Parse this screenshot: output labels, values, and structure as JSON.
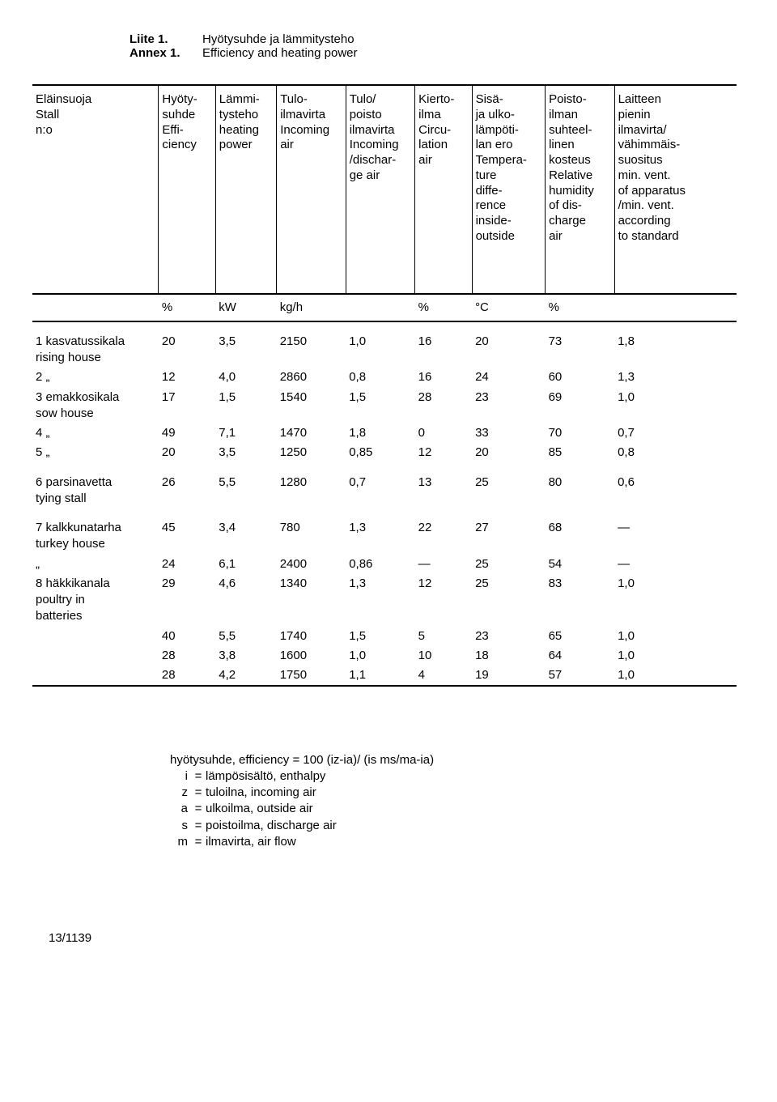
{
  "header": {
    "label_fi": "Liite 1.",
    "label_en": "Annex 1.",
    "title_fi": "Hyötysuhde ja lämmitysteho",
    "title_en": "Efficiency and heating power"
  },
  "columns": [
    "Eläinsuoja\nStall\nn:o",
    "Hyöty-\nsuhde\nEffi-\nciency",
    "Lämmi-\ntysteho\nheating\npower",
    "Tulo-\nilmavirta\nIncoming\nair",
    "Tulo/\npoisto\nilmavirta\nIncoming\n/dischar-\nge air",
    "Kierto-\nilma\nCircu-\nlation\nair",
    "Sisä-\nja ulko-\nlämpöti-\nlan ero\nTempera-\nture\ndiffe-\nrence\ninside-\noutside",
    "Poisto-\nilman\nsuhteel-\nlinen\nkosteus\nRelative\nhumidity\nof dis-\ncharge\nair",
    "Laitteen\npienin\nilmavirta/\nvähimmäis-\nsuositus\nmin. vent.\nof apparatus\n/min. vent.\naccording\nto standard"
  ],
  "units": [
    "",
    "%",
    "kW",
    "kg/h",
    "",
    "%",
    "°C",
    "%",
    ""
  ],
  "groups": [
    {
      "rows": [
        {
          "stall": "1  kasvatussikala\n    rising house",
          "cells": [
            "20",
            "3,5",
            "2150",
            "1,0",
            "16",
            "20",
            "73",
            "1,8"
          ]
        },
        {
          "stall": "2       „",
          "cells": [
            "12",
            "4,0",
            "2860",
            "0,8",
            "16",
            "24",
            "60",
            "1,3"
          ]
        },
        {
          "stall": "3  emakkosikala\n    sow house",
          "cells": [
            "17",
            "1,5",
            "1540",
            "1,5",
            "28",
            "23",
            "69",
            "1,0"
          ]
        },
        {
          "stall": "4       „",
          "cells": [
            "49",
            "7,1",
            "1470",
            "1,8",
            "0",
            "33",
            "70",
            "0,7"
          ]
        },
        {
          "stall": "5       „",
          "cells": [
            "20",
            "3,5",
            "1250",
            "0,85",
            "12",
            "20",
            "85",
            "0,8"
          ]
        }
      ]
    },
    {
      "rows": [
        {
          "stall": "6  parsinavetta\n    tying stall",
          "cells": [
            "26",
            "5,5",
            "1280",
            "0,7",
            "13",
            "25",
            "80",
            "0,6"
          ]
        }
      ]
    },
    {
      "rows": [
        {
          "stall": "7  kalkkunatarha\n    turkey house",
          "cells": [
            "45",
            "3,4",
            "780",
            "1,3",
            "22",
            "27",
            "68",
            "—"
          ]
        },
        {
          "stall": "        „",
          "cells": [
            "24",
            "6,1",
            "2400",
            "0,86",
            "—",
            "25",
            "54",
            "—"
          ]
        },
        {
          "stall": "8  häkkikanala\n    poultry in\n    batteries",
          "cells": [
            "29",
            "4,6",
            "1340",
            "1,3",
            "12",
            "25",
            "83",
            "1,0"
          ]
        },
        {
          "stall": "",
          "cells": [
            "40",
            "5,5",
            "1740",
            "1,5",
            "5",
            "23",
            "65",
            "1,0"
          ]
        },
        {
          "stall": "",
          "cells": [
            "28",
            "3,8",
            "1600",
            "1,0",
            "10",
            "18",
            "64",
            "1,0"
          ]
        },
        {
          "stall": "",
          "cells": [
            "28",
            "4,2",
            "1750",
            "1,1",
            "4",
            "19",
            "57",
            "1,0"
          ]
        }
      ]
    }
  ],
  "legend": {
    "formula": "hyötysuhde, efficiency = 100 (iz-ia)/ (is ms/ma-ia)",
    "items": [
      {
        "sym": "i",
        "text": "lämpösisältö, enthalpy"
      },
      {
        "sym": "z",
        "text": "tuloilna, incoming air"
      },
      {
        "sym": "a",
        "text": "ulkoilma, outside air"
      },
      {
        "sym": "s",
        "text": "poistoilma, discharge air"
      },
      {
        "sym": "m",
        "text": "ilmavirta, air flow"
      }
    ]
  },
  "footer": "13/1139"
}
